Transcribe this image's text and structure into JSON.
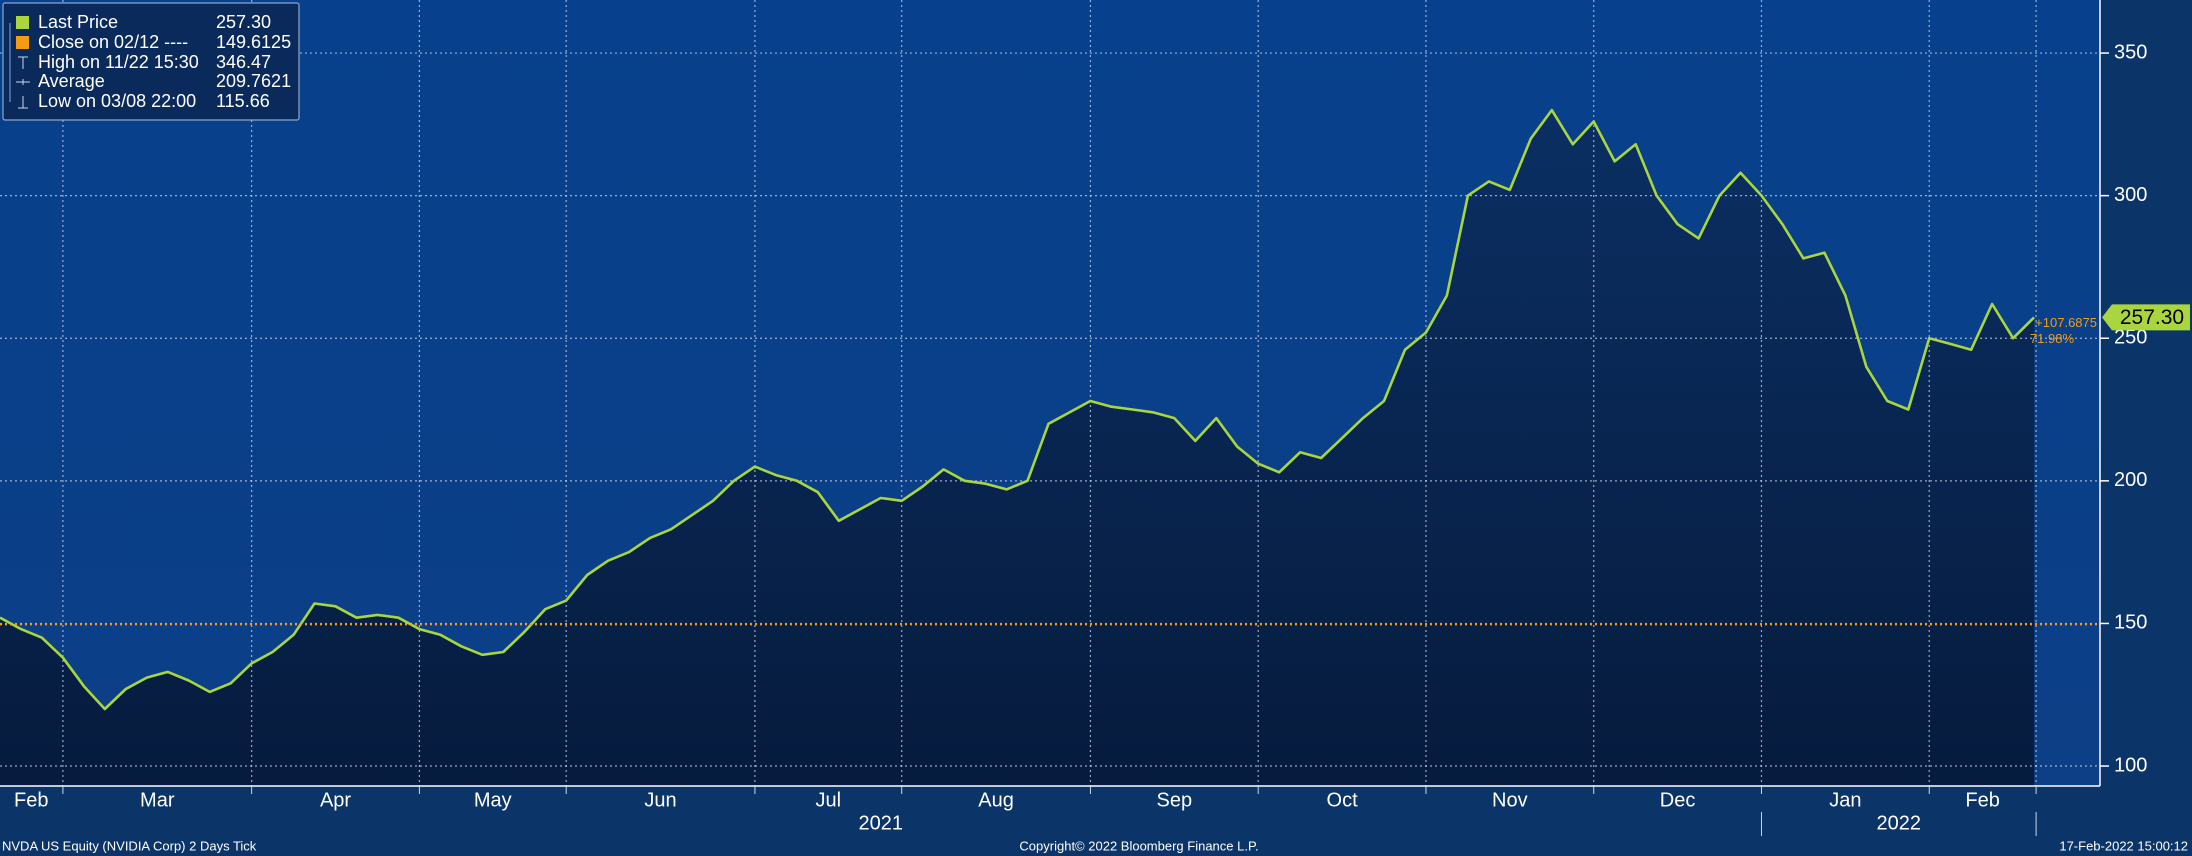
{
  "chart_data": {
    "type": "area",
    "categories": [
      "Feb",
      null,
      null,
      "Mar",
      null,
      null,
      null,
      null,
      null,
      null,
      null,
      null,
      "Apr",
      null,
      null,
      null,
      null,
      null,
      null,
      null,
      "May",
      null,
      null,
      null,
      null,
      null,
      null,
      "Jun",
      null,
      null,
      null,
      null,
      null,
      null,
      null,
      null,
      "Jul",
      null,
      null,
      null,
      null,
      null,
      null,
      "Aug",
      null,
      null,
      null,
      null,
      null,
      null,
      null,
      null,
      "Sep",
      null,
      null,
      null,
      null,
      null,
      null,
      null,
      "Oct",
      null,
      null,
      null,
      null,
      null,
      null,
      null,
      "Nov",
      null,
      null,
      null,
      null,
      null,
      null,
      null,
      "Dec",
      null,
      null,
      null,
      null,
      null,
      null,
      null,
      "Jan",
      null,
      null,
      null,
      null,
      null,
      null,
      null,
      "Feb",
      null,
      null,
      null,
      null,
      null
    ],
    "series": [
      {
        "name": "Last Price",
        "color": "#a9d63f",
        "values": [
          152,
          148,
          145,
          138,
          128,
          120,
          127,
          131,
          133,
          130,
          126,
          129,
          136,
          140,
          146,
          157,
          156,
          152,
          153,
          152,
          148,
          146,
          142,
          139,
          140,
          147,
          155,
          158,
          167,
          172,
          175,
          180,
          183,
          188,
          193,
          200,
          205,
          202,
          200,
          196,
          186,
          190,
          194,
          193,
          198,
          204,
          200,
          199,
          197,
          200,
          220,
          224,
          228,
          226,
          225,
          224,
          222,
          214,
          222,
          212,
          206,
          203,
          210,
          208,
          215,
          222,
          228,
          246,
          252,
          265,
          300,
          305,
          302,
          320,
          330,
          318,
          326,
          312,
          318,
          300,
          290,
          285,
          300,
          308,
          300,
          290,
          278,
          280,
          265,
          240,
          228,
          225,
          250,
          248,
          246,
          262,
          250,
          257.3
        ],
        "last_value": {
          "value": 257.3,
          "label": "257.30"
        }
      }
    ],
    "stats": [
      {
        "name": "Close on 02/12 ----",
        "value": 149.6125,
        "color": "#f39c12"
      },
      {
        "name": "High on 11/22 15:30",
        "value": 346.47
      },
      {
        "name": "Average",
        "value": 209.7621
      },
      {
        "name": "Low on 03/08 22:00",
        "value": 115.66
      }
    ],
    "change": {
      "value": 107.6875,
      "label": "+107.6875"
    },
    "change_pct": {
      "value": 71.98,
      "label": "71.98%"
    },
    "ylim": [
      93,
      368.6
    ],
    "yticks": [
      100,
      150,
      200,
      250,
      300,
      350
    ],
    "grid": true,
    "year_labels": [
      "2021",
      "2022"
    ],
    "footer": {
      "left": "NVDA US Equity (NVIDIA Corp) 2 Days  Tick",
      "center": "Copyright© 2022 Bloomberg Finance L.P.",
      "right": "17-Feb-2022 15:00:12"
    }
  }
}
